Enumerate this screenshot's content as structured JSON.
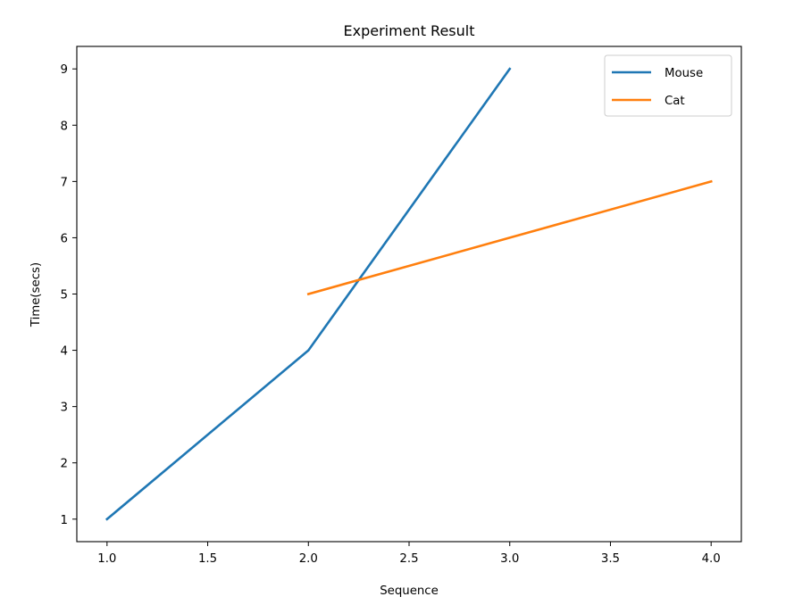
{
  "chart_data": {
    "type": "line",
    "title": "Experiment Result",
    "xlabel": "Sequence",
    "ylabel": "Time(secs)",
    "xlim": [
      0.85,
      4.15
    ],
    "ylim": [
      0.6,
      9.4
    ],
    "x_ticks": [
      1.0,
      1.5,
      2.0,
      2.5,
      3.0,
      3.5,
      4.0
    ],
    "x_tick_labels": [
      "1.0",
      "1.5",
      "2.0",
      "2.5",
      "3.0",
      "3.5",
      "4.0"
    ],
    "y_ticks": [
      1,
      2,
      3,
      4,
      5,
      6,
      7,
      8,
      9
    ],
    "y_tick_labels": [
      "1",
      "2",
      "3",
      "4",
      "5",
      "6",
      "7",
      "8",
      "9"
    ],
    "grid": false,
    "legend_position": "top-right",
    "series": [
      {
        "name": "Mouse",
        "color": "#1f77b4",
        "x": [
          1,
          2,
          3
        ],
        "y": [
          1,
          4,
          9
        ]
      },
      {
        "name": "Cat",
        "color": "#ff7f0e",
        "x": [
          2,
          3,
          4
        ],
        "y": [
          5,
          6,
          7
        ]
      }
    ]
  }
}
